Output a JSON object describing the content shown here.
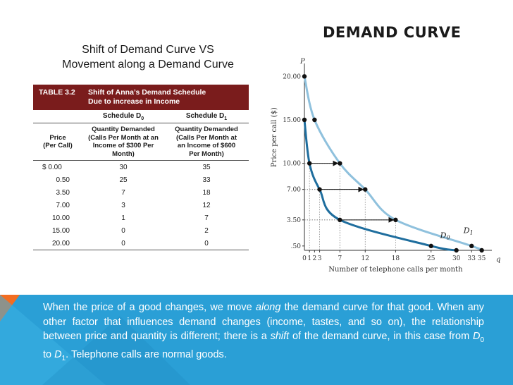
{
  "slide": {
    "title": "DEMAND CURVE",
    "subtitle_line1": "Shift of Demand Curve VS",
    "subtitle_line2": "Movement along a Demand Curve"
  },
  "table": {
    "number": "TABLE 3.2",
    "title_line1": "Shift of Anna’s Demand Schedule",
    "title_line2": "Due to increase in Income",
    "schedule_d0": "Schedule D",
    "schedule_d0_sub": "0",
    "schedule_d1": "Schedule D",
    "schedule_d1_sub": "1",
    "col_price_line1": "Price",
    "col_price_line2": "(Per Call)",
    "col_d0_line1": "Quantity Demanded",
    "col_d0_line2": "(Calls Per Month at an",
    "col_d0_line3": "Income of $300 Per",
    "col_d0_line4": "Month)",
    "col_d1_line1": "Quantity Demanded",
    "col_d1_line2": "(Calls Per Month at",
    "col_d1_line3": "an Income of $600",
    "col_d1_line4": "Per Month)",
    "rows": [
      {
        "price": "$ 0.00",
        "d0": "30",
        "d1": "35"
      },
      {
        "price": "0.50",
        "d0": "25",
        "d1": "33"
      },
      {
        "price": "3.50",
        "d0": "7",
        "d1": "18"
      },
      {
        "price": "7.00",
        "d0": "3",
        "d1": "12"
      },
      {
        "price": "10.00",
        "d0": "1",
        "d1": "7"
      },
      {
        "price": "15.00",
        "d0": "0",
        "d1": "2"
      },
      {
        "price": "20.00",
        "d0": "0",
        "d1": "0"
      }
    ]
  },
  "chart_data": {
    "type": "line",
    "title": "",
    "xlabel": "Number of telephone calls per month",
    "ylabel": "Price per call ($)",
    "x_axis_letter": "q",
    "y_axis_letter": "P",
    "xlim": [
      0,
      37
    ],
    "ylim": [
      0,
      21
    ],
    "x_ticks": [
      {
        "value": 0,
        "label": "0"
      },
      {
        "value": 1,
        "label": "1"
      },
      {
        "value": 2,
        "label": "2"
      },
      {
        "value": 3,
        "label": "3"
      },
      {
        "value": 7,
        "label": "7"
      },
      {
        "value": 12,
        "label": "12"
      },
      {
        "value": 18,
        "label": "18"
      },
      {
        "value": 25,
        "label": "25"
      },
      {
        "value": 30,
        "label": "30"
      },
      {
        "value": 33,
        "label": "33"
      },
      {
        "value": 35,
        "label": "35"
      }
    ],
    "y_ticks": [
      {
        "value": 0.5,
        "label": ".50"
      },
      {
        "value": 3.5,
        "label": "3.50"
      },
      {
        "value": 7,
        "label": "7.00"
      },
      {
        "value": 10,
        "label": "10.00"
      },
      {
        "value": 15,
        "label": "15.00"
      },
      {
        "value": 20,
        "label": "20.00"
      }
    ],
    "series": [
      {
        "name": "D0",
        "label_main": "D",
        "label_sub": "0",
        "color": "#1f6e9e",
        "points": [
          [
            0,
            15
          ],
          [
            1,
            10
          ],
          [
            3,
            7
          ],
          [
            7,
            3.5
          ],
          [
            25,
            0.5
          ],
          [
            30,
            0
          ]
        ]
      },
      {
        "name": "D1",
        "label_main": "D",
        "label_sub": "1",
        "color": "#8fc1dd",
        "points": [
          [
            0,
            20
          ],
          [
            2,
            15
          ],
          [
            7,
            10
          ],
          [
            12,
            7
          ],
          [
            18,
            3.5
          ],
          [
            33,
            0.5
          ],
          [
            35,
            0
          ]
        ]
      }
    ],
    "shift_arrows": [
      {
        "from": [
          1,
          10
        ],
        "to": [
          7,
          10
        ]
      },
      {
        "from": [
          3,
          7
        ],
        "to": [
          12,
          7
        ]
      },
      {
        "from": [
          7,
          3.5
        ],
        "to": [
          18,
          3.5
        ]
      }
    ],
    "grid": false
  },
  "explanation": {
    "p1": "When the price of a good changes, we move ",
    "along": "along",
    "p2": " the demand curve for that good.  When any other factor that influences demand changes (income, tastes, and so on), the relationship between price and quantity is different; there is a ",
    "shift": "shift",
    "p3": " of the demand curve, in this case from ",
    "d": "D",
    "d0_sub": "0",
    "to": " to ",
    "d1_sub": "1",
    "p4": ". Telephone calls are normal goods."
  },
  "colors": {
    "table_header": "#7a1c1c",
    "band": "#2a9fd6",
    "band_accent": "#f26d21",
    "d0_curve": "#1f6e9e",
    "d1_curve": "#8fc1dd"
  }
}
